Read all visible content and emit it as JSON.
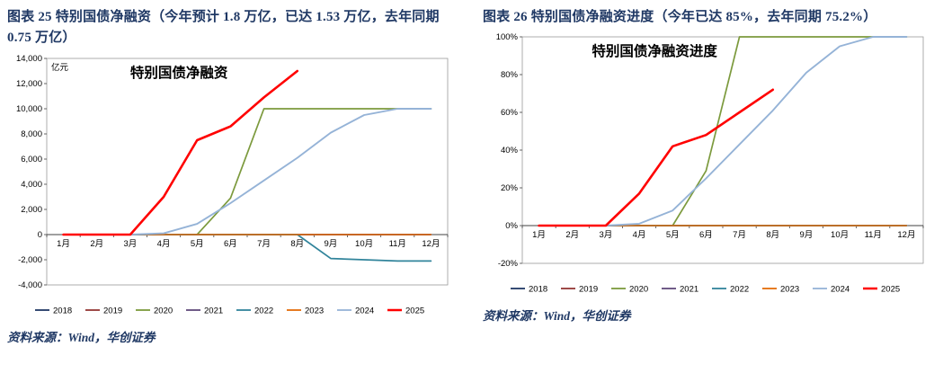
{
  "colors": {
    "accent": "#1F3864",
    "axis": "#404040",
    "plot_border": "#9a9a9a"
  },
  "panels": [
    {
      "heading": "图表 25  特别国债净融资（今年预计 1.8 万亿，已达 1.53 万亿，去年同期 0.75 万亿）",
      "source": "资料来源：Wind，华创证券"
    },
    {
      "heading": "图表 26  特别国债净融资进度（今年已达 85%，去年同期 75.2%）",
      "source": "资料来源：Wind，华创证券"
    }
  ],
  "chart_data": [
    {
      "type": "line",
      "title": "特别国债净融资",
      "unit_label": "亿元",
      "categories": [
        "1月",
        "2月",
        "3月",
        "4月",
        "5月",
        "6月",
        "7月",
        "8月",
        "9月",
        "10月",
        "11月",
        "12月"
      ],
      "y_min": -4000,
      "y_max": 14000,
      "y_step": 2000,
      "y_format": "number",
      "grid": false,
      "legend_position": "bottom",
      "series": [
        {
          "name": "2018",
          "color": "#1F3864",
          "width": 1.4,
          "values": [
            0,
            0,
            0,
            0,
            0,
            0,
            0,
            0,
            0,
            0,
            0,
            0
          ]
        },
        {
          "name": "2019",
          "color": "#943634",
          "width": 1.4,
          "values": [
            0,
            0,
            0,
            0,
            0,
            0,
            0,
            0,
            0,
            0,
            0,
            0
          ]
        },
        {
          "name": "2020",
          "color": "#7C9A3D",
          "width": 1.7,
          "values": [
            0,
            0,
            0,
            0,
            0,
            2900,
            10000,
            10000,
            10000,
            10000,
            10000,
            10000
          ]
        },
        {
          "name": "2021",
          "color": "#604A7B",
          "width": 1.4,
          "values": [
            0,
            0,
            0,
            0,
            0,
            0,
            0,
            0,
            0,
            0,
            0,
            0
          ]
        },
        {
          "name": "2022",
          "color": "#31849B",
          "width": 1.7,
          "values": [
            0,
            0,
            0,
            0,
            0,
            0,
            0,
            0,
            -1900,
            -2000,
            -2100,
            -2100
          ]
        },
        {
          "name": "2023",
          "color": "#E36C09",
          "width": 1.4,
          "values": [
            0,
            0,
            0,
            0,
            0,
            0,
            0,
            0,
            0,
            0,
            0,
            0
          ]
        },
        {
          "name": "2024",
          "color": "#95B3D7",
          "width": 1.9,
          "values": [
            0,
            0,
            0,
            100,
            850,
            2500,
            4300,
            6100,
            8100,
            9500,
            10000,
            10000
          ]
        },
        {
          "name": "2025",
          "color": "#FF0000",
          "width": 2.6,
          "values": [
            0,
            0,
            0,
            3000,
            7500,
            8600,
            10900,
            13000,
            null,
            null,
            null,
            null
          ]
        }
      ]
    },
    {
      "type": "line",
      "title": "特别国债净融资进度",
      "unit_label": "",
      "categories": [
        "1月",
        "2月",
        "3月",
        "4月",
        "5月",
        "6月",
        "7月",
        "8月",
        "9月",
        "10月",
        "11月",
        "12月"
      ],
      "y_min": -20,
      "y_max": 100,
      "y_step": 20,
      "y_format": "percent",
      "grid": false,
      "legend_position": "bottom",
      "series": [
        {
          "name": "2018",
          "color": "#1F3864",
          "width": 1.4,
          "values": [
            0,
            0,
            0,
            0,
            0,
            0,
            0,
            0,
            0,
            0,
            0,
            0
          ]
        },
        {
          "name": "2019",
          "color": "#943634",
          "width": 1.4,
          "values": [
            0,
            0,
            0,
            0,
            0,
            0,
            0,
            0,
            0,
            0,
            0,
            0
          ]
        },
        {
          "name": "2020",
          "color": "#7C9A3D",
          "width": 1.7,
          "values": [
            0,
            0,
            0,
            0,
            0,
            29,
            100,
            100,
            100,
            100,
            100,
            100
          ]
        },
        {
          "name": "2021",
          "color": "#604A7B",
          "width": 1.4,
          "values": [
            0,
            0,
            0,
            0,
            0,
            0,
            0,
            0,
            0,
            0,
            0,
            0
          ]
        },
        {
          "name": "2022",
          "color": "#31849B",
          "width": 1.7,
          "values": [
            0,
            0,
            0,
            0,
            0,
            0,
            0,
            0,
            0,
            0,
            0,
            0
          ]
        },
        {
          "name": "2023",
          "color": "#E36C09",
          "width": 1.4,
          "values": [
            0,
            0,
            0,
            0,
            0,
            0,
            0,
            0,
            0,
            0,
            0,
            0
          ]
        },
        {
          "name": "2024",
          "color": "#95B3D7",
          "width": 1.9,
          "values": [
            0,
            0,
            0,
            1,
            8,
            25,
            43,
            61,
            81,
            95,
            100,
            100
          ]
        },
        {
          "name": "2025",
          "color": "#FF0000",
          "width": 2.6,
          "values": [
            0,
            0,
            0,
            17,
            42,
            48,
            60,
            72,
            null,
            null,
            null,
            null
          ]
        }
      ]
    }
  ]
}
